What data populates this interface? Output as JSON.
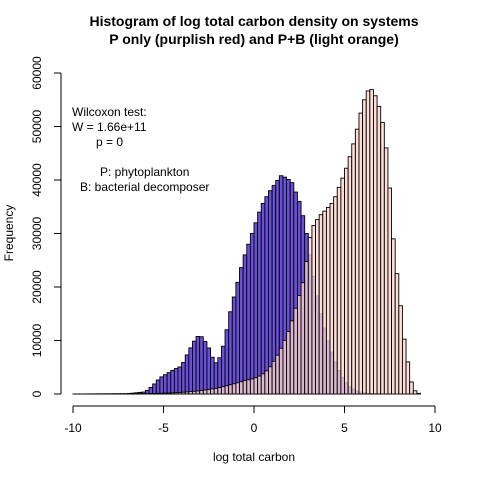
{
  "chart_data": {
    "type": "bar",
    "title": "Histogram of log total carbon density on systems",
    "subtitle": "P only (purplish red) and P+B (light orange)",
    "xlabel": "log total carbon",
    "ylabel": "Frequency",
    "xlim": [
      -10,
      10
    ],
    "ylim": [
      0,
      60000
    ],
    "xticks": [
      -10,
      -5,
      0,
      5,
      10
    ],
    "yticks": [
      0,
      10000,
      20000,
      30000,
      40000,
      50000,
      60000
    ],
    "bin_width": 0.2,
    "annotations": {
      "test": [
        "Wilcoxon test:",
        "W = 1.66e+11",
        "p = 0"
      ],
      "legend": [
        "P: phytoplankton",
        "B: bacterial decomposer"
      ]
    },
    "series": [
      {
        "fill": "#6a4fd8",
        "points": [
          [
            -10,
            0
          ],
          [
            -7,
            50
          ],
          [
            -6,
            400
          ],
          [
            -5.6,
            1500
          ],
          [
            -5.2,
            3000
          ],
          [
            -4.8,
            3800
          ],
          [
            -4.4,
            4600
          ],
          [
            -4,
            5200
          ],
          [
            -3.6,
            8000
          ],
          [
            -3.2,
            10500
          ],
          [
            -3,
            11000
          ],
          [
            -2.8,
            10400
          ],
          [
            -2.5,
            8600
          ],
          [
            -2.2,
            6000
          ],
          [
            -2,
            5700
          ],
          [
            -1.6,
            10000
          ],
          [
            -1.4,
            14000
          ],
          [
            -1,
            19500
          ],
          [
            -0.6,
            25000
          ],
          [
            -0.2,
            29000
          ],
          [
            0,
            31000
          ],
          [
            0.2,
            33000
          ],
          [
            0.4,
            35000
          ],
          [
            0.8,
            37500
          ],
          [
            1.2,
            39500
          ],
          [
            1.5,
            40800
          ],
          [
            1.8,
            40400
          ],
          [
            2.1,
            39500
          ],
          [
            2.5,
            36000
          ],
          [
            2.8,
            32000
          ],
          [
            3.1,
            26000
          ],
          [
            3.4,
            20000
          ],
          [
            3.7,
            15000
          ],
          [
            4,
            11000
          ],
          [
            4.4,
            6800
          ],
          [
            4.8,
            3600
          ],
          [
            5.2,
            1600
          ],
          [
            5.6,
            700
          ],
          [
            6,
            250
          ],
          [
            6.4,
            100
          ],
          [
            7,
            50
          ]
        ]
      },
      {
        "fill": "#fcd5cc",
        "points": [
          [
            -10,
            0
          ],
          [
            -6,
            50
          ],
          [
            -5,
            150
          ],
          [
            -4,
            300
          ],
          [
            -3,
            600
          ],
          [
            -2,
            1100
          ],
          [
            -1,
            2000
          ],
          [
            -0.5,
            2500
          ],
          [
            0,
            2900
          ],
          [
            0.4,
            3500
          ],
          [
            0.8,
            4600
          ],
          [
            1.2,
            6600
          ],
          [
            1.6,
            9200
          ],
          [
            2,
            12500
          ],
          [
            2.4,
            17200
          ],
          [
            2.8,
            22000
          ],
          [
            3,
            27500
          ],
          [
            3.2,
            31000
          ],
          [
            3.4,
            32000
          ],
          [
            3.6,
            33200
          ],
          [
            4,
            34500
          ],
          [
            4.4,
            36000
          ],
          [
            4.8,
            39500
          ],
          [
            5,
            41200
          ],
          [
            5.2,
            43200
          ],
          [
            5.4,
            45500
          ],
          [
            5.6,
            48000
          ],
          [
            5.8,
            51000
          ],
          [
            6,
            54000
          ],
          [
            6.2,
            56000
          ],
          [
            6.4,
            57300
          ],
          [
            6.6,
            56500
          ],
          [
            6.8,
            55000
          ],
          [
            7,
            52500
          ],
          [
            7.2,
            49000
          ],
          [
            7.4,
            43000
          ],
          [
            7.6,
            34000
          ],
          [
            7.8,
            24000
          ],
          [
            8,
            21000
          ],
          [
            8.2,
            12000
          ],
          [
            8.4,
            8500
          ],
          [
            8.6,
            3500
          ],
          [
            8.8,
            1000
          ],
          [
            9,
            200
          ],
          [
            9.2,
            50
          ]
        ]
      }
    ]
  }
}
